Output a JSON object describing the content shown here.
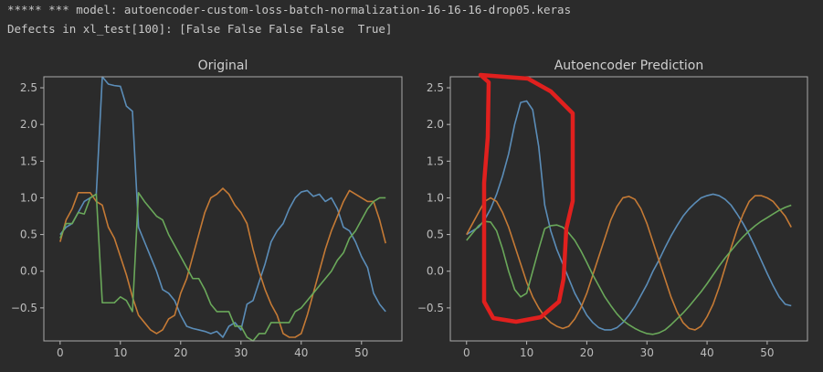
{
  "output_lines": [
    "***** *** model: autoencoder-custom-loss-batch-normalization-16-16-16-drop05.keras",
    "Defects in xl_test[100]: [False False False False  True]"
  ],
  "chart_data": [
    {
      "type": "line",
      "title": "Original",
      "x": [
        0,
        1,
        2,
        3,
        4,
        5,
        6,
        7,
        8,
        9,
        10,
        11,
        12,
        13,
        14,
        15,
        16,
        17,
        18,
        19,
        20,
        21,
        22,
        23,
        24,
        25,
        26,
        27,
        28,
        29,
        30,
        31,
        32,
        33,
        34,
        35,
        36,
        37,
        38,
        39,
        40,
        41,
        42,
        43,
        44,
        45,
        46,
        47,
        48,
        49,
        50,
        51,
        52,
        53,
        54
      ],
      "xlim": [
        -2.7,
        56.7
      ],
      "xticks": [
        0,
        10,
        20,
        30,
        40,
        50
      ],
      "ylim": [
        -0.95,
        2.65
      ],
      "yticks": [
        {
          "value": -0.5,
          "label": "−0.5"
        },
        {
          "value": 0,
          "label": "0.0"
        },
        {
          "value": 0.5,
          "label": "0.5"
        },
        {
          "value": 1,
          "label": "1.0"
        },
        {
          "value": 1.5,
          "label": "1.5"
        },
        {
          "value": 2,
          "label": "2.0"
        },
        {
          "value": 2.5,
          "label": "2.5"
        }
      ],
      "series": [
        {
          "color": "#5b8db8",
          "values": [
            0.5,
            0.6,
            0.65,
            0.8,
            0.95,
            1.0,
            1.05,
            2.65,
            2.55,
            2.53,
            2.52,
            2.25,
            2.18,
            0.6,
            0.4,
            0.2,
            0.0,
            -0.25,
            -0.3,
            -0.4,
            -0.6,
            -0.75,
            -0.78,
            -0.8,
            -0.82,
            -0.85,
            -0.82,
            -0.9,
            -0.75,
            -0.7,
            -0.8,
            -0.45,
            -0.4,
            -0.15,
            0.1,
            0.4,
            0.55,
            0.65,
            0.85,
            1.0,
            1.08,
            1.1,
            1.02,
            1.05,
            0.95,
            1.0,
            0.85,
            0.6,
            0.55,
            0.4,
            0.2,
            0.05,
            -0.3,
            -0.45,
            -0.55
          ]
        },
        {
          "color": "#c57a35",
          "values": [
            0.4,
            0.7,
            0.85,
            1.07,
            1.07,
            1.07,
            0.95,
            0.9,
            0.6,
            0.45,
            0.2,
            -0.05,
            -0.35,
            -0.6,
            -0.7,
            -0.8,
            -0.85,
            -0.8,
            -0.65,
            -0.6,
            -0.3,
            -0.1,
            0.2,
            0.5,
            0.8,
            1.0,
            1.05,
            1.13,
            1.05,
            0.9,
            0.8,
            0.65,
            0.3,
            0.0,
            -0.25,
            -0.45,
            -0.6,
            -0.85,
            -0.9,
            -0.9,
            -0.85,
            -0.6,
            -0.3,
            0.0,
            0.3,
            0.55,
            0.75,
            0.95,
            1.1,
            1.05,
            1.0,
            0.95,
            0.95,
            0.7,
            0.38
          ]
        },
        {
          "color": "#6aa85a",
          "values": [
            0.45,
            0.65,
            0.65,
            0.8,
            0.78,
            1.0,
            1.05,
            -0.43,
            -0.43,
            -0.43,
            -0.35,
            -0.4,
            -0.55,
            1.07,
            0.95,
            0.85,
            0.75,
            0.7,
            0.5,
            0.35,
            0.2,
            0.05,
            -0.1,
            -0.1,
            -0.25,
            -0.45,
            -0.55,
            -0.55,
            -0.55,
            -0.75,
            -0.75,
            -0.9,
            -0.95,
            -0.85,
            -0.85,
            -0.7,
            -0.7,
            -0.7,
            -0.7,
            -0.55,
            -0.5,
            -0.4,
            -0.3,
            -0.2,
            -0.1,
            0.0,
            0.15,
            0.25,
            0.45,
            0.55,
            0.7,
            0.85,
            0.95,
            1.0,
            1.0
          ]
        }
      ]
    },
    {
      "type": "line",
      "title": "Autoencoder Prediction",
      "x": [
        0,
        1,
        2,
        3,
        4,
        5,
        6,
        7,
        8,
        9,
        10,
        11,
        12,
        13,
        14,
        15,
        16,
        17,
        18,
        19,
        20,
        21,
        22,
        23,
        24,
        25,
        26,
        27,
        28,
        29,
        30,
        31,
        32,
        33,
        34,
        35,
        36,
        37,
        38,
        39,
        40,
        41,
        42,
        43,
        44,
        45,
        46,
        47,
        48,
        49,
        50,
        51,
        52,
        53,
        54
      ],
      "xlim": [
        -2.7,
        56.7
      ],
      "xticks": [
        0,
        10,
        20,
        30,
        40,
        50
      ],
      "ylim": [
        -0.95,
        2.65
      ],
      "yticks": [
        {
          "value": -0.5,
          "label": "−0.5"
        },
        {
          "value": 0,
          "label": "0.0"
        },
        {
          "value": 0.5,
          "label": "0.5"
        },
        {
          "value": 1,
          "label": "1.0"
        },
        {
          "value": 1.5,
          "label": "1.5"
        },
        {
          "value": 2,
          "label": "2.0"
        },
        {
          "value": 2.5,
          "label": "2.5"
        }
      ],
      "series": [
        {
          "color": "#5b8db8",
          "values": [
            0.5,
            0.55,
            0.6,
            0.7,
            0.85,
            1.05,
            1.3,
            1.6,
            2.0,
            2.3,
            2.32,
            2.2,
            1.7,
            0.9,
            0.55,
            0.3,
            0.1,
            -0.1,
            -0.3,
            -0.45,
            -0.6,
            -0.7,
            -0.77,
            -0.8,
            -0.8,
            -0.77,
            -0.7,
            -0.6,
            -0.48,
            -0.33,
            -0.18,
            0.0,
            0.15,
            0.32,
            0.48,
            0.62,
            0.75,
            0.85,
            0.93,
            1.0,
            1.03,
            1.05,
            1.03,
            0.98,
            0.9,
            0.78,
            0.65,
            0.5,
            0.33,
            0.15,
            -0.03,
            -0.2,
            -0.35,
            -0.45,
            -0.47
          ]
        },
        {
          "color": "#c57a35",
          "values": [
            0.5,
            0.65,
            0.8,
            0.95,
            1.0,
            0.95,
            0.8,
            0.6,
            0.35,
            0.1,
            -0.15,
            -0.35,
            -0.5,
            -0.62,
            -0.7,
            -0.75,
            -0.78,
            -0.75,
            -0.65,
            -0.5,
            -0.3,
            -0.05,
            0.2,
            0.45,
            0.7,
            0.88,
            1.0,
            1.02,
            0.98,
            0.85,
            0.65,
            0.4,
            0.15,
            -0.1,
            -0.35,
            -0.55,
            -0.7,
            -0.78,
            -0.8,
            -0.75,
            -0.62,
            -0.45,
            -0.22,
            0.05,
            0.32,
            0.57,
            0.78,
            0.95,
            1.03,
            1.03,
            1.0,
            0.95,
            0.85,
            0.75,
            0.6
          ]
        },
        {
          "color": "#6aa85a",
          "values": [
            0.42,
            0.52,
            0.62,
            0.68,
            0.67,
            0.55,
            0.3,
            0.0,
            -0.25,
            -0.35,
            -0.3,
            0.0,
            0.3,
            0.58,
            0.62,
            0.63,
            0.6,
            0.52,
            0.42,
            0.28,
            0.12,
            -0.05,
            -0.2,
            -0.35,
            -0.47,
            -0.58,
            -0.67,
            -0.73,
            -0.78,
            -0.82,
            -0.85,
            -0.86,
            -0.84,
            -0.8,
            -0.73,
            -0.65,
            -0.57,
            -0.48,
            -0.38,
            -0.28,
            -0.17,
            -0.05,
            0.07,
            0.18,
            0.28,
            0.38,
            0.47,
            0.55,
            0.62,
            0.68,
            0.73,
            0.78,
            0.83,
            0.87,
            0.9
          ]
        }
      ]
    }
  ]
}
